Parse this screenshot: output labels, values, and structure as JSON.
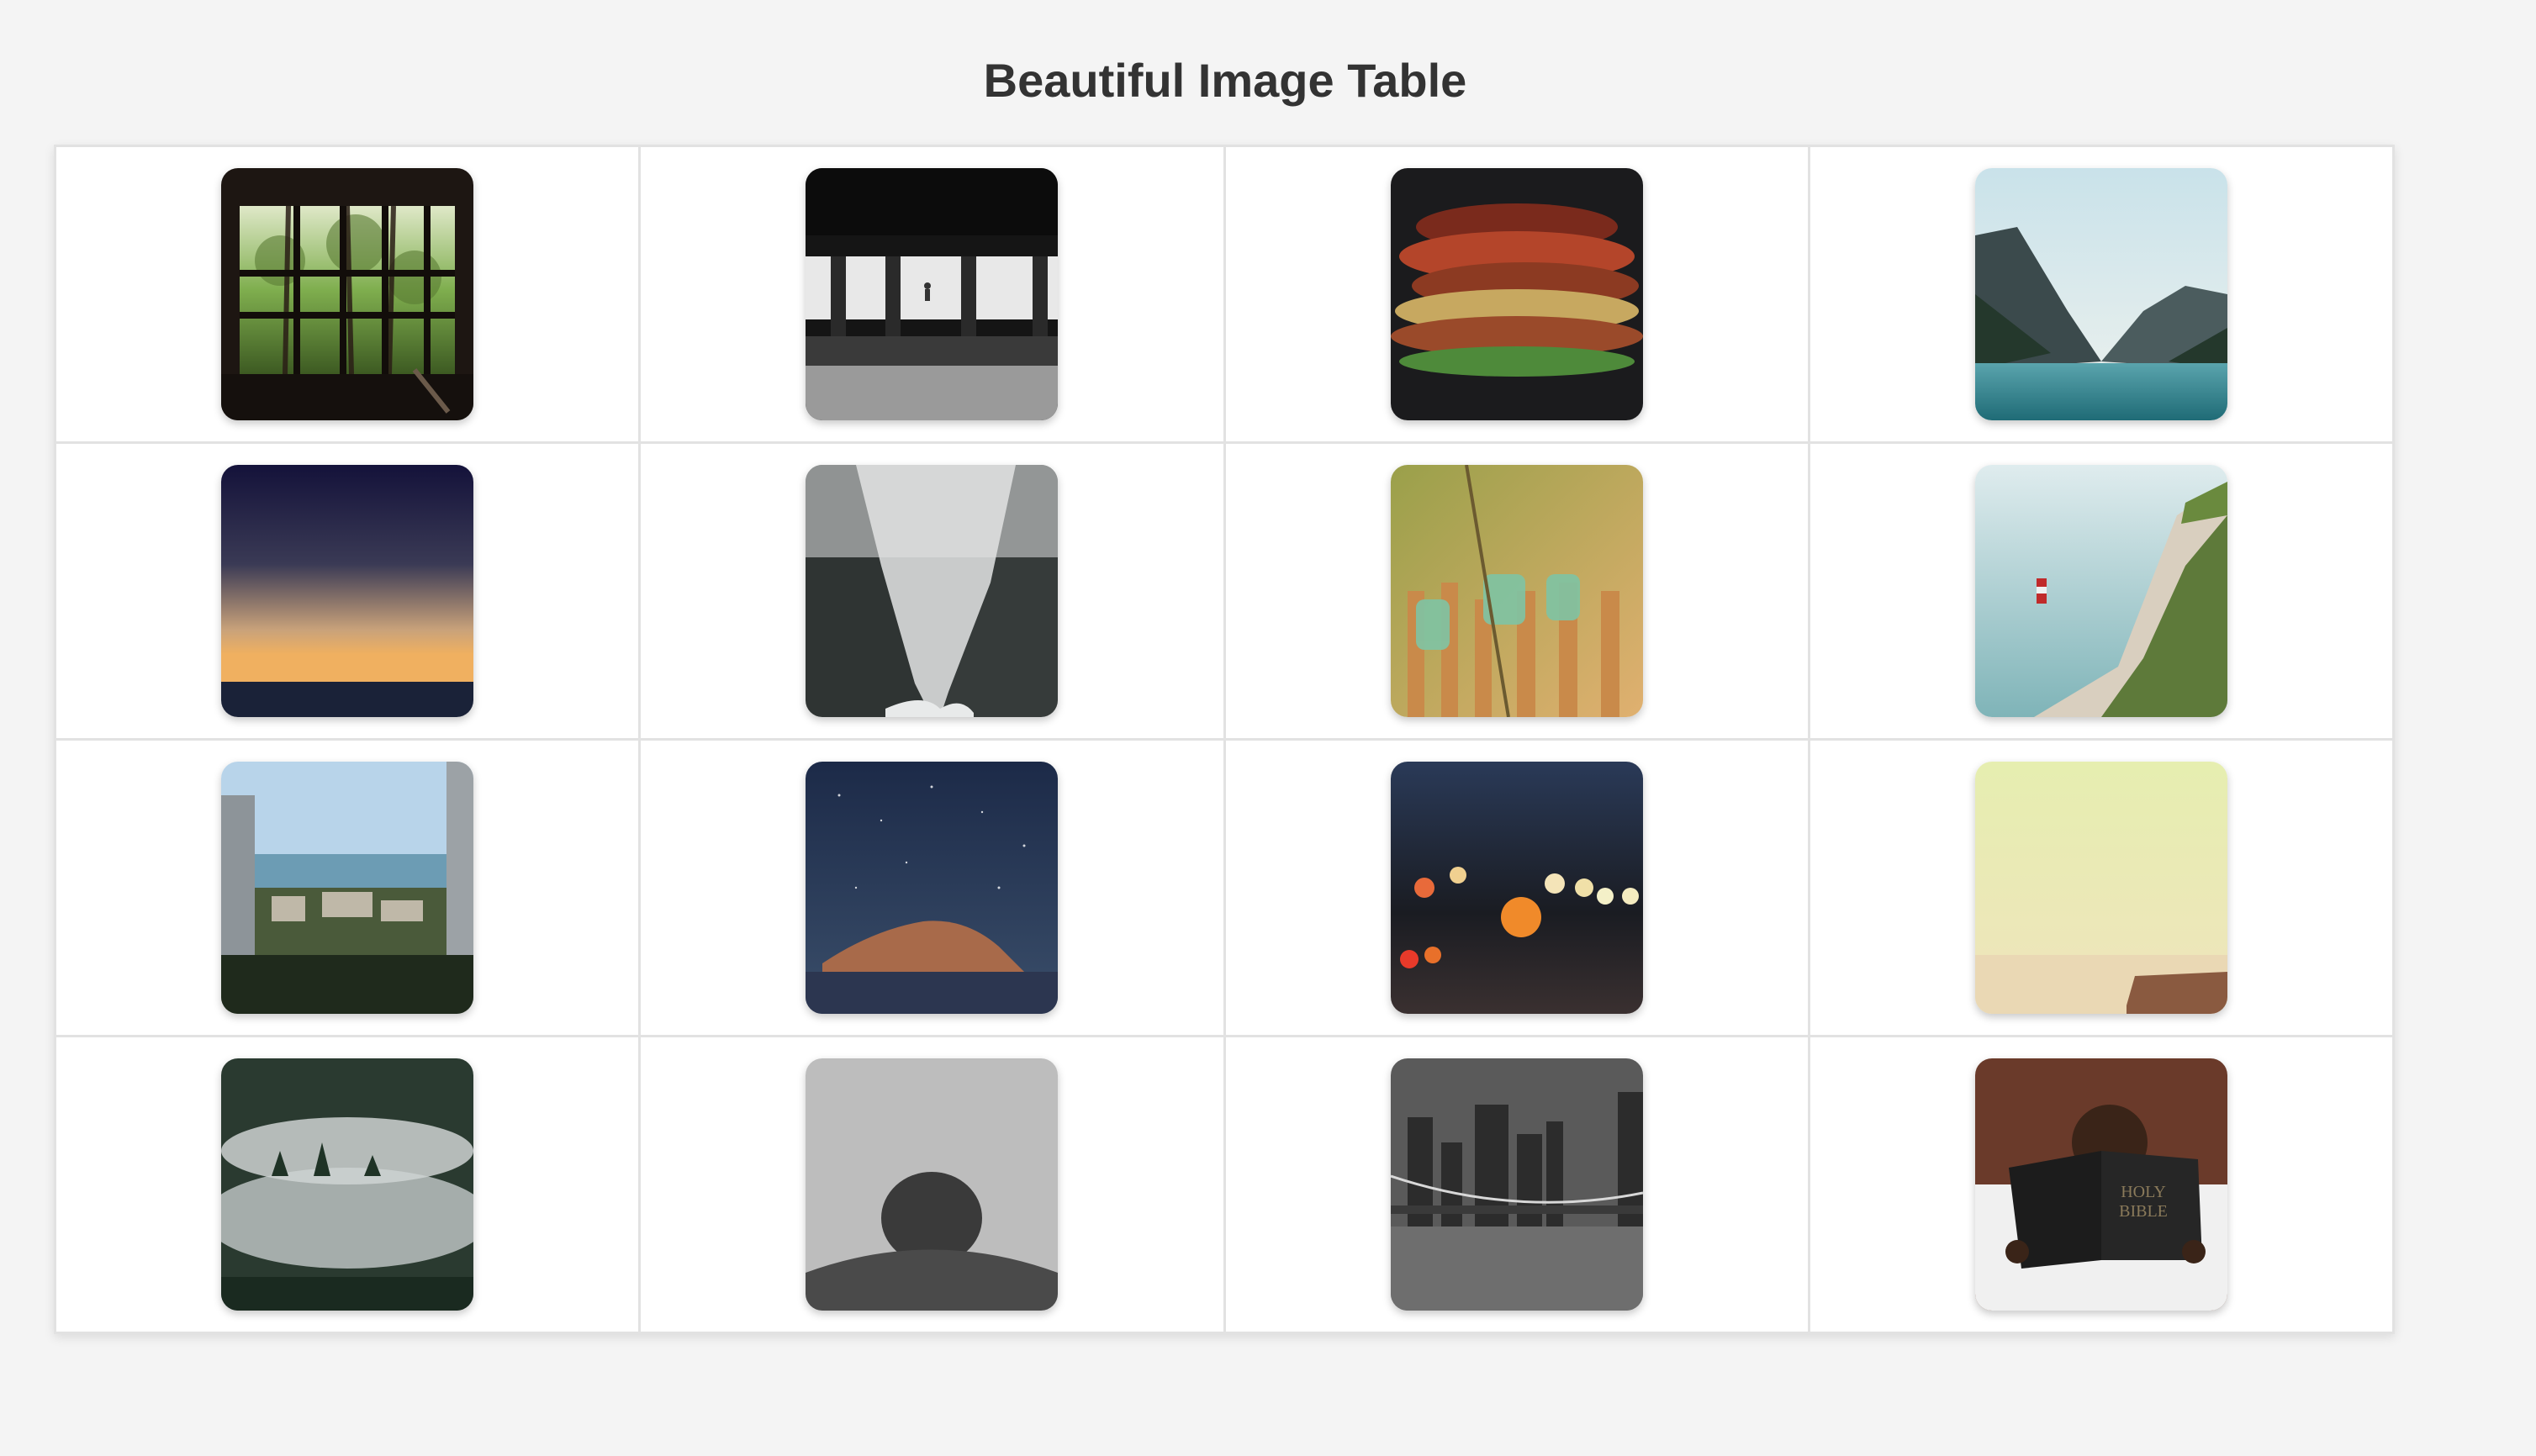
{
  "page": {
    "title": "Beautiful Image Table"
  },
  "images": [
    {
      "name": "forest-window-image",
      "subject": "forest through window"
    },
    {
      "name": "subway-platform-image",
      "subject": "subway platform"
    },
    {
      "name": "autumn-leaves-image",
      "subject": "stacked autumn leaves"
    },
    {
      "name": "mountain-lake-image",
      "subject": "mountain lake"
    },
    {
      "name": "sunset-ocean-image",
      "subject": "sunset over ocean"
    },
    {
      "name": "misty-canyon-image",
      "subject": "misty canyon"
    },
    {
      "name": "green-bottles-fence-image",
      "subject": "green bottles on fence"
    },
    {
      "name": "cliff-lighthouse-image",
      "subject": "cliff with lighthouse"
    },
    {
      "name": "coastal-city-image",
      "subject": "coastal city view"
    },
    {
      "name": "starry-mountain-image",
      "subject": "starry night mountain"
    },
    {
      "name": "city-bokeh-image",
      "subject": "city bokeh lights"
    },
    {
      "name": "hazy-beach-image",
      "subject": "hazy beach"
    },
    {
      "name": "foggy-forest-image",
      "subject": "foggy forest hill"
    },
    {
      "name": "person-silhouette-image",
      "subject": "person silhouette"
    },
    {
      "name": "bridge-skyline-image",
      "subject": "bridge and city skyline"
    },
    {
      "name": "reading-bible-image",
      "subject": "child reading bible",
      "book_text": [
        "HOLY",
        "BIBLE"
      ]
    }
  ]
}
